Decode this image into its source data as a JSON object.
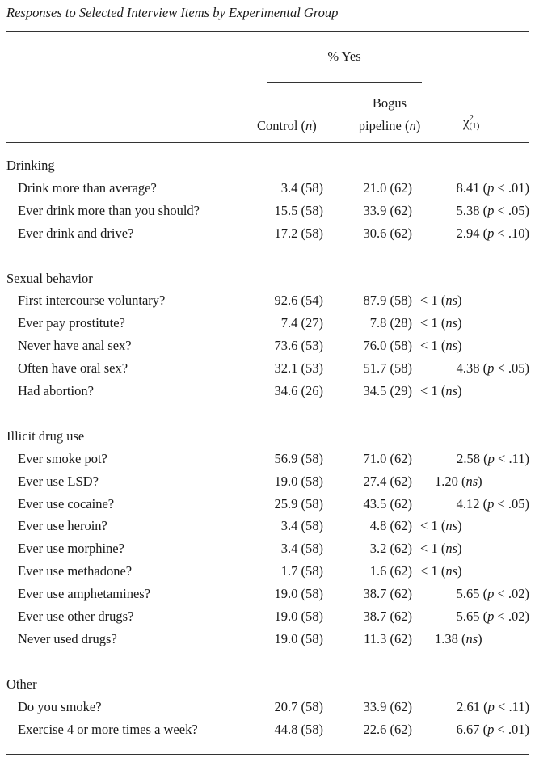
{
  "table": {
    "title": "Responses to Selected Interview Items by Experimental Group",
    "header": {
      "group_label": "% Yes",
      "col_control": "Control (n)",
      "col_bogus_line1": "Bogus",
      "col_bogus_line2": "pipeline (n)",
      "col_chi": "χ",
      "col_chi_sup": "2",
      "col_chi_sub": "(1)"
    },
    "sections": [
      {
        "name": "Drinking",
        "rows": [
          {
            "item": "Drink more than average?",
            "control": "3.4 (58)",
            "bogus": "21.0 (62)",
            "chi": "8.41 (p < .01)",
            "align": "right"
          },
          {
            "item": "Ever drink more than you should?",
            "control": "15.5 (58)",
            "bogus": "33.9 (62)",
            "chi": "5.38 (p < .05)",
            "align": "right"
          },
          {
            "item": "Ever drink and drive?",
            "control": "17.2 (58)",
            "bogus": "30.6 (62)",
            "chi": "2.94 (p < .10)",
            "align": "right"
          }
        ]
      },
      {
        "name": "Sexual behavior",
        "rows": [
          {
            "item": "First intercourse voluntary?",
            "control": "92.6 (54)",
            "bogus": "87.9 (58)",
            "chi": "< 1 (ns)",
            "align": "left"
          },
          {
            "item": "Ever pay prostitute?",
            "control": "7.4 (27)",
            "bogus": "7.8 (28)",
            "chi": "< 1 (ns)",
            "align": "left"
          },
          {
            "item": "Never have anal sex?",
            "control": "73.6 (53)",
            "bogus": "76.0 (58)",
            "chi": "< 1 (ns)",
            "align": "left"
          },
          {
            "item": "Often have oral sex?",
            "control": "32.1 (53)",
            "bogus": "51.7 (58)",
            "chi": "4.38 (p < .05)",
            "align": "right"
          },
          {
            "item": "Had abortion?",
            "control": "34.6 (26)",
            "bogus": "34.5 (29)",
            "chi": "< 1 (ns)",
            "align": "left"
          }
        ]
      },
      {
        "name": "Illicit drug use",
        "rows": [
          {
            "item": "Ever smoke pot?",
            "control": "56.9 (58)",
            "bogus": "71.0 (62)",
            "chi": "2.58 (p < .11)",
            "align": "right"
          },
          {
            "item": "Ever use LSD?",
            "control": "19.0 (58)",
            "bogus": "27.4 (62)",
            "chi": "1.20 (ns)",
            "align": "mid"
          },
          {
            "item": "Ever use cocaine?",
            "control": "25.9 (58)",
            "bogus": "43.5 (62)",
            "chi": "4.12 (p < .05)",
            "align": "right"
          },
          {
            "item": "Ever use heroin?",
            "control": "3.4 (58)",
            "bogus": "4.8 (62)",
            "chi": "< 1 (ns)",
            "align": "left"
          },
          {
            "item": "Ever use morphine?",
            "control": "3.4 (58)",
            "bogus": "3.2 (62)",
            "chi": "< 1 (ns)",
            "align": "left"
          },
          {
            "item": "Ever use methadone?",
            "control": "1.7 (58)",
            "bogus": "1.6 (62)",
            "chi": "< 1 (ns)",
            "align": "left"
          },
          {
            "item": "Ever use amphetamines?",
            "control": "19.0 (58)",
            "bogus": "38.7 (62)",
            "chi": "5.65 (p < .02)",
            "align": "right"
          },
          {
            "item": "Ever use other drugs?",
            "control": "19.0 (58)",
            "bogus": "38.7 (62)",
            "chi": "5.65 (p < .02)",
            "align": "right"
          },
          {
            "item": "Never used drugs?",
            "control": "19.0 (58)",
            "bogus": "11.3 (62)",
            "chi": "1.38 (ns)",
            "align": "mid"
          }
        ]
      },
      {
        "name": "Other",
        "rows": [
          {
            "item": "Do you smoke?",
            "control": "20.7 (58)",
            "bogus": "33.9 (62)",
            "chi": "2.61 (p < .11)",
            "align": "right"
          },
          {
            "item": "Exercise 4 or more times a week?",
            "control": "44.8 (58)",
            "bogus": "22.6 (62)",
            "chi": "6.67 (p < .01)",
            "align": "right"
          }
        ]
      }
    ]
  }
}
